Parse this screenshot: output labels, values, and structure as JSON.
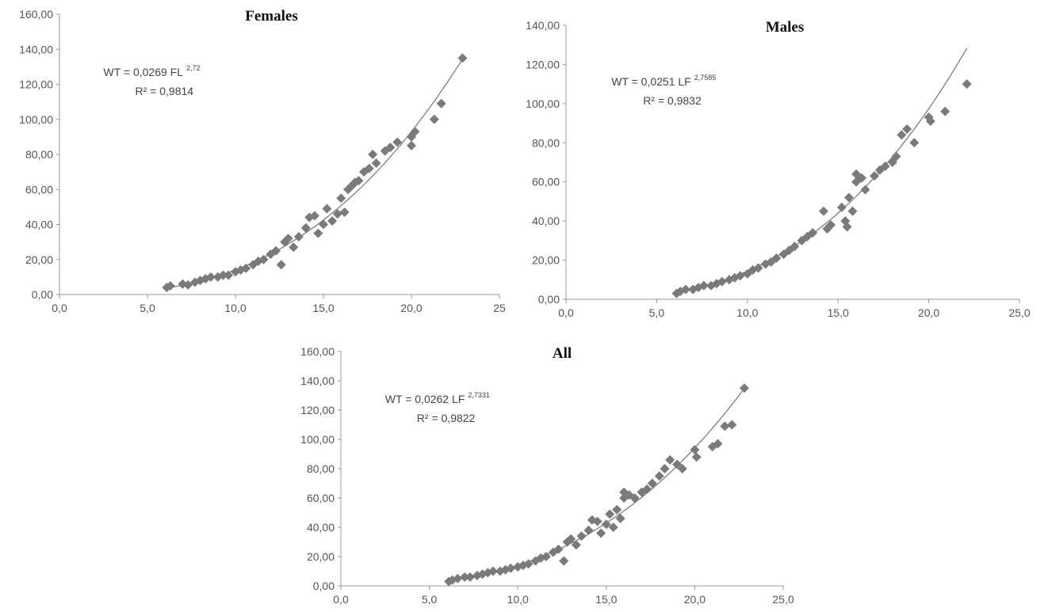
{
  "chart_data": [
    {
      "type": "scatter",
      "title": "Females",
      "equation": {
        "lead": "WT = 0,0269 FL",
        "exp": "2,72",
        "r2": "R² = 0,9814"
      },
      "fit": {
        "a": 0.0269,
        "b": 2.72
      },
      "xlim": [
        0,
        25
      ],
      "ylim": [
        0,
        160
      ],
      "xticks": [
        "0,0",
        "5,0",
        "10,0",
        "15,0",
        "20,0",
        "25"
      ],
      "yticks": [
        "0,00",
        "20,00",
        "40,00",
        "60,00",
        "80,00",
        "100,00",
        "120,00",
        "140,00",
        "160,00"
      ],
      "color": "#7a7a7a",
      "points": [
        [
          6.1,
          4
        ],
        [
          6.3,
          5
        ],
        [
          7,
          6
        ],
        [
          7.3,
          5.5
        ],
        [
          7.7,
          7
        ],
        [
          8,
          8
        ],
        [
          8.3,
          9
        ],
        [
          8.6,
          10
        ],
        [
          9,
          10
        ],
        [
          9.3,
          11
        ],
        [
          9.6,
          11
        ],
        [
          10,
          13
        ],
        [
          10.3,
          14
        ],
        [
          10.6,
          15
        ],
        [
          11,
          17
        ],
        [
          11.3,
          19
        ],
        [
          11.6,
          20
        ],
        [
          12,
          23
        ],
        [
          12.3,
          25
        ],
        [
          12.6,
          17
        ],
        [
          12.8,
          30
        ],
        [
          13,
          32
        ],
        [
          13.3,
          27
        ],
        [
          13.6,
          33
        ],
        [
          14,
          38
        ],
        [
          14.2,
          44
        ],
        [
          14.5,
          45
        ],
        [
          14.7,
          35
        ],
        [
          15,
          40
        ],
        [
          15.2,
          49
        ],
        [
          15.5,
          42
        ],
        [
          15.8,
          46
        ],
        [
          16,
          55
        ],
        [
          16.2,
          47
        ],
        [
          16.4,
          60
        ],
        [
          16.6,
          62
        ],
        [
          16.8,
          64
        ],
        [
          17,
          65
        ],
        [
          17.3,
          70
        ],
        [
          17.6,
          72
        ],
        [
          17.8,
          80
        ],
        [
          18,
          75
        ],
        [
          18.5,
          82
        ],
        [
          18.8,
          84
        ],
        [
          19.2,
          87
        ],
        [
          20,
          90
        ],
        [
          20,
          85
        ],
        [
          20.2,
          93
        ],
        [
          21.3,
          100
        ],
        [
          21.7,
          109
        ],
        [
          22.9,
          135
        ]
      ]
    },
    {
      "type": "scatter",
      "title": "Males",
      "equation": {
        "lead": "WT = 0,0251 LF",
        "exp": "2,7585",
        "r2": "R² = 0,9832"
      },
      "fit": {
        "a": 0.0251,
        "b": 2.7585
      },
      "xlim": [
        0,
        25
      ],
      "ylim": [
        0,
        140
      ],
      "xticks": [
        "0,0",
        "5,0",
        "10,0",
        "15,0",
        "20,0",
        "25,0"
      ],
      "yticks": [
        "0,00",
        "20,00",
        "40,00",
        "60,00",
        "80,00",
        "100,00",
        "120,00",
        "140,00"
      ],
      "color": "#7a7a7a",
      "points": [
        [
          6.1,
          3
        ],
        [
          6.3,
          4
        ],
        [
          6.6,
          5
        ],
        [
          7,
          5
        ],
        [
          7.3,
          6
        ],
        [
          7.6,
          7
        ],
        [
          8,
          7
        ],
        [
          8.3,
          8
        ],
        [
          8.6,
          9
        ],
        [
          9,
          10
        ],
        [
          9.3,
          11
        ],
        [
          9.6,
          12
        ],
        [
          10,
          13
        ],
        [
          10.3,
          15
        ],
        [
          10.6,
          16
        ],
        [
          11,
          18
        ],
        [
          11.3,
          19
        ],
        [
          11.6,
          21
        ],
        [
          12,
          23
        ],
        [
          12.3,
          25
        ],
        [
          12.6,
          27
        ],
        [
          13,
          30
        ],
        [
          13.3,
          32
        ],
        [
          13.6,
          34
        ],
        [
          14.2,
          45
        ],
        [
          14.4,
          36
        ],
        [
          14.6,
          38
        ],
        [
          15.2,
          47
        ],
        [
          15.4,
          40
        ],
        [
          15.5,
          37
        ],
        [
          15.6,
          52
        ],
        [
          15.8,
          45
        ],
        [
          16,
          60
        ],
        [
          16,
          64
        ],
        [
          16.3,
          62
        ],
        [
          16.5,
          56
        ],
        [
          17,
          63
        ],
        [
          17.3,
          66
        ],
        [
          17.6,
          68
        ],
        [
          18,
          70
        ],
        [
          18.2,
          73
        ],
        [
          18.5,
          84
        ],
        [
          18.8,
          87
        ],
        [
          19.2,
          80
        ],
        [
          20,
          93
        ],
        [
          20.1,
          91
        ],
        [
          20.9,
          96
        ],
        [
          22.1,
          110
        ]
      ]
    },
    {
      "type": "scatter",
      "title": "All",
      "equation": {
        "lead": "WT = 0,0262 LF",
        "exp": "2,7331",
        "r2": "R² = 0,9822"
      },
      "fit": {
        "a": 0.0262,
        "b": 2.7331
      },
      "xlim": [
        0,
        25
      ],
      "ylim": [
        0,
        160
      ],
      "xticks": [
        "0,0",
        "5,0",
        "10,0",
        "15,0",
        "20,0",
        "25,0"
      ],
      "yticks": [
        "0,00",
        "20,00",
        "40,00",
        "60,00",
        "80,00",
        "100,00",
        "120,00",
        "140,00",
        "160,00"
      ],
      "color": "#7a7a7a",
      "points": [
        [
          6.1,
          3
        ],
        [
          6.3,
          4
        ],
        [
          6.6,
          5
        ],
        [
          7,
          6
        ],
        [
          7.3,
          6
        ],
        [
          7.7,
          7
        ],
        [
          8,
          8
        ],
        [
          8.3,
          9
        ],
        [
          8.6,
          10
        ],
        [
          9,
          10
        ],
        [
          9.3,
          11
        ],
        [
          9.6,
          12
        ],
        [
          10,
          13
        ],
        [
          10.3,
          14
        ],
        [
          10.6,
          15
        ],
        [
          11,
          17
        ],
        [
          11.3,
          19
        ],
        [
          11.6,
          20
        ],
        [
          12,
          23
        ],
        [
          12.3,
          25
        ],
        [
          12.6,
          17
        ],
        [
          12.8,
          30
        ],
        [
          13,
          32
        ],
        [
          13.3,
          28
        ],
        [
          13.6,
          34
        ],
        [
          14,
          38
        ],
        [
          14.2,
          45
        ],
        [
          14.5,
          44
        ],
        [
          14.7,
          36
        ],
        [
          15,
          42
        ],
        [
          15.2,
          49
        ],
        [
          15.4,
          40
        ],
        [
          15.6,
          52
        ],
        [
          15.8,
          46
        ],
        [
          16,
          60
        ],
        [
          16,
          64
        ],
        [
          16.3,
          62
        ],
        [
          16.6,
          60
        ],
        [
          17,
          64
        ],
        [
          17.3,
          66
        ],
        [
          17.6,
          70
        ],
        [
          18,
          75
        ],
        [
          18.3,
          80
        ],
        [
          18.6,
          86
        ],
        [
          19,
          83
        ],
        [
          19.3,
          80
        ],
        [
          20,
          93
        ],
        [
          20.1,
          88
        ],
        [
          21,
          95
        ],
        [
          21.3,
          97
        ],
        [
          21.7,
          109
        ],
        [
          22.1,
          110
        ],
        [
          22.8,
          135
        ]
      ]
    }
  ]
}
